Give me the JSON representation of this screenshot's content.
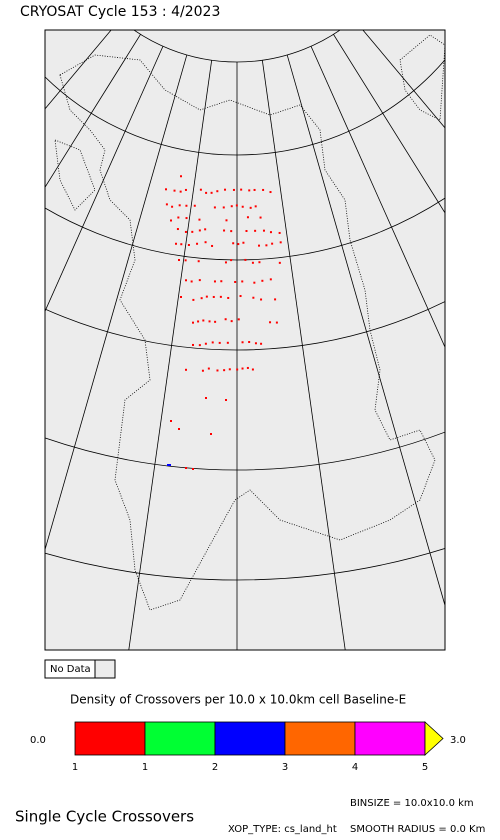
{
  "title": "CRYOSAT Cycle 153 : 4/2023",
  "no_data_label": "No Data",
  "colorbar": {
    "title": "Density of Crossovers per  10.0 x  10.0km cell Baseline-E",
    "min_label": "0.0",
    "max_label": "3.0",
    "colors": [
      "#ff0000",
      "#00ff33",
      "#0000ff",
      "#ff6600",
      "#ff00ff"
    ],
    "over_color": "#ffff00",
    "tick_labels": [
      "1",
      "1",
      "2",
      "3",
      "4",
      "5"
    ]
  },
  "footer": {
    "heading": "Single Cycle Crossovers",
    "binsize": "BINSIZE = 10.0x10.0 km",
    "xop_type": "XOP_TYPE: cs_land_ht",
    "smooth_radius": "SMOOTH RADIUS =    0.0 Km"
  }
}
